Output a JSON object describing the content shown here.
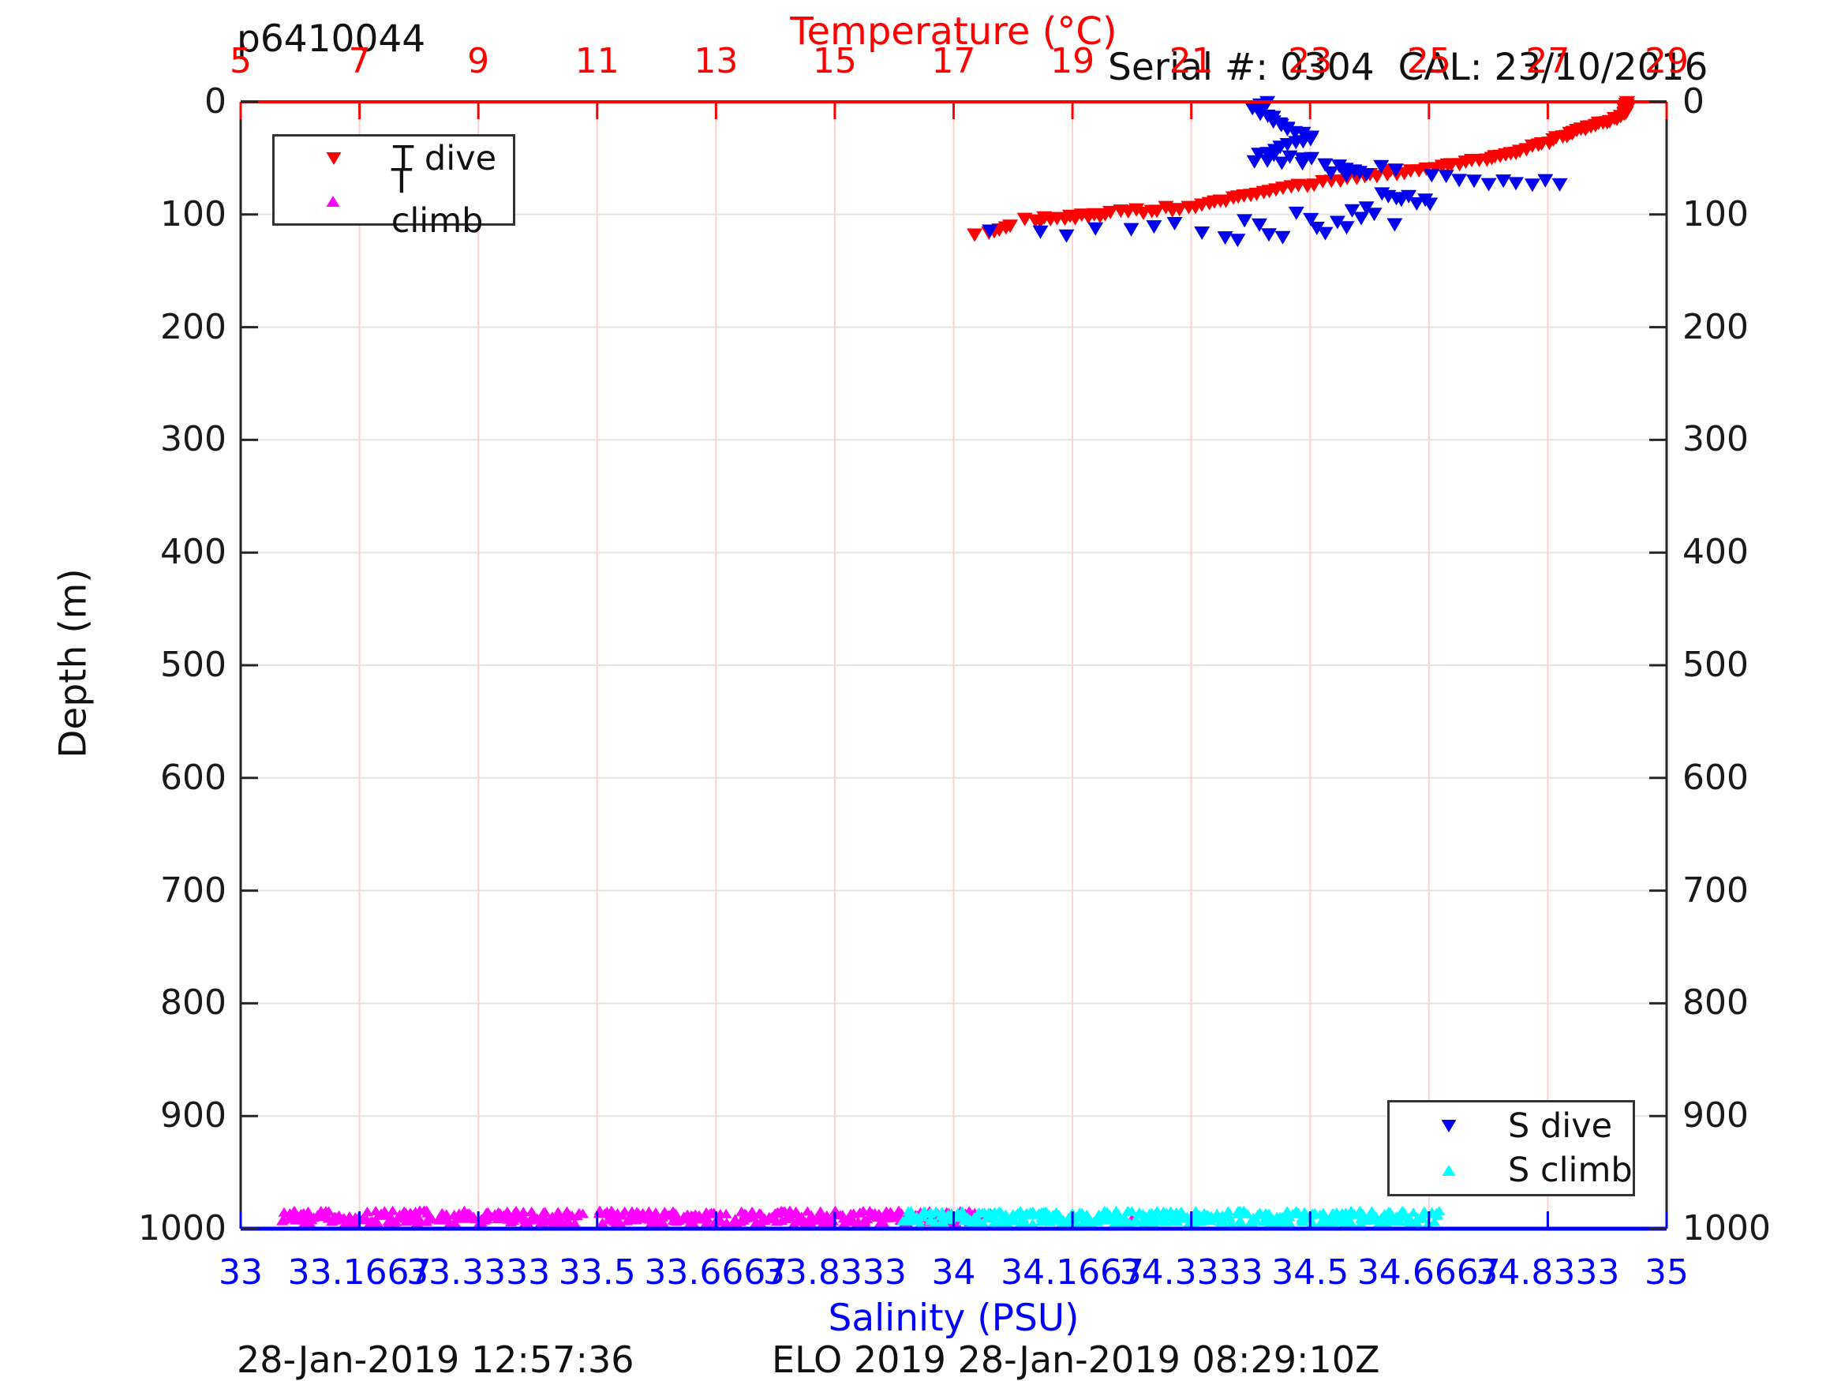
{
  "header": {
    "title": "p6410044",
    "serial_cal": "Serial #: 0304  CAL: 23/10/2016"
  },
  "footer": {
    "left_timestamp": "28-Jan-2019 12:57:36",
    "center_text": "ELO 2019 28-Jan-2019 08:29:10Z"
  },
  "axes": {
    "temperature": {
      "label": "Temperature (°C)",
      "side": "top",
      "color": "#ff0000",
      "min": 5,
      "max": 29,
      "ticks": [
        5,
        7,
        9,
        11,
        13,
        15,
        17,
        19,
        21,
        23,
        25,
        27,
        29
      ],
      "gridline_color": "#ffd2d2"
    },
    "salinity": {
      "label": "Salinity (PSU)",
      "side": "bottom",
      "color": "#0000ff",
      "min": 33,
      "max": 35,
      "tick_values": [
        33,
        33.16667,
        33.33333,
        33.5,
        33.66667,
        33.83333,
        34,
        34.16667,
        34.33333,
        34.5,
        34.66667,
        34.83333,
        35
      ],
      "tick_labels": [
        "33",
        "33.1667",
        "33.3333",
        "33.5",
        "33.6667",
        "33.8333",
        "34",
        "34.1667",
        "34.3333",
        "34.5",
        "34.6667",
        "34.8333",
        "35"
      ]
    },
    "depth": {
      "label": "Depth (m)",
      "color": "#1a1a1a",
      "min": 0,
      "max": 1000,
      "ticks": [
        0,
        100,
        200,
        300,
        400,
        500,
        600,
        700,
        800,
        900,
        1000
      ],
      "gridline_color": "#e4e4e4"
    }
  },
  "legends": {
    "t": {
      "items": [
        {
          "label": "T dive",
          "marker": "triangle-down",
          "color": "#ff0000"
        },
        {
          "label": "T climb",
          "marker": "triangle-up",
          "color": "#ff00ff"
        }
      ]
    },
    "s": {
      "items": [
        {
          "label": "S dive",
          "marker": "triangle-down",
          "color": "#0000ee"
        },
        {
          "label": "S climb",
          "marker": "triangle-up",
          "color": "#00ffff"
        }
      ]
    }
  },
  "chart_data": {
    "type": "scatter",
    "title": "p6410044",
    "x_axes": {
      "temperature": [
        5,
        29
      ],
      "salinity": [
        33,
        35
      ]
    },
    "y_axis": {
      "label": "Depth (m)",
      "range": [
        0,
        1000
      ],
      "reversed_display": true
    },
    "grid": true,
    "series": [
      {
        "name": "T dive",
        "axis": "temperature",
        "color": "#ff0000",
        "marker": "triangle-down",
        "points": [
          [
            28.33,
            1
          ],
          [
            28.3,
            2
          ],
          [
            28.35,
            3
          ],
          [
            28.31,
            4
          ],
          [
            28.34,
            5
          ],
          [
            28.3,
            6
          ],
          [
            28.32,
            7
          ],
          [
            28.34,
            8
          ],
          [
            28.3,
            9
          ],
          [
            28.32,
            10
          ],
          [
            28.3,
            11
          ],
          [
            28.28,
            12
          ],
          [
            28.24,
            14
          ],
          [
            28.18,
            15
          ],
          [
            28.12,
            16
          ],
          [
            28.06,
            17
          ],
          [
            28.0,
            18
          ],
          [
            27.94,
            19
          ],
          [
            27.88,
            20
          ],
          [
            27.8,
            21
          ],
          [
            27.74,
            22
          ],
          [
            27.68,
            23
          ],
          [
            27.62,
            24
          ],
          [
            27.56,
            25
          ],
          [
            27.5,
            26
          ],
          [
            27.45,
            27
          ],
          [
            27.4,
            28
          ],
          [
            27.35,
            29
          ],
          [
            27.3,
            31
          ],
          [
            27.23,
            32
          ],
          [
            27.16,
            33
          ],
          [
            27.1,
            34
          ],
          [
            27.02,
            36
          ],
          [
            26.92,
            37
          ],
          [
            26.82,
            39
          ],
          [
            26.73,
            40
          ],
          [
            26.64,
            42
          ],
          [
            26.55,
            43
          ],
          [
            26.46,
            45
          ],
          [
            26.38,
            46
          ],
          [
            26.3,
            47
          ],
          [
            26.21,
            48
          ],
          [
            26.12,
            49
          ],
          [
            26.04,
            50
          ],
          [
            25.95,
            51
          ],
          [
            25.85,
            52
          ],
          [
            25.73,
            53
          ],
          [
            25.61,
            54
          ],
          [
            25.5,
            55
          ],
          [
            25.4,
            56
          ],
          [
            25.3,
            57
          ],
          [
            25.2,
            58
          ],
          [
            25.1,
            59
          ],
          [
            24.97,
            60
          ],
          [
            24.85,
            61
          ],
          [
            24.7,
            62
          ],
          [
            24.58,
            63
          ],
          [
            24.47,
            64
          ],
          [
            24.36,
            62
          ],
          [
            24.28,
            65
          ],
          [
            24.15,
            66
          ],
          [
            24.0,
            64
          ],
          [
            23.9,
            67
          ],
          [
            23.78,
            68
          ],
          [
            23.64,
            69
          ],
          [
            23.5,
            70
          ],
          [
            23.37,
            71
          ],
          [
            23.22,
            72
          ],
          [
            23.08,
            73
          ],
          [
            22.95,
            74
          ],
          [
            22.82,
            75
          ],
          [
            22.68,
            76
          ],
          [
            22.55,
            77
          ],
          [
            22.43,
            78
          ],
          [
            22.32,
            80
          ],
          [
            22.2,
            81
          ],
          [
            22.1,
            82
          ],
          [
            22.0,
            83
          ],
          [
            21.9,
            84
          ],
          [
            21.8,
            85
          ],
          [
            21.7,
            86
          ],
          [
            21.6,
            88
          ],
          [
            21.5,
            89
          ],
          [
            21.4,
            90
          ],
          [
            21.3,
            91
          ],
          [
            21.18,
            92
          ],
          [
            21.06,
            93
          ],
          [
            20.94,
            94
          ],
          [
            20.82,
            95
          ],
          [
            20.68,
            96
          ],
          [
            20.55,
            94
          ],
          [
            20.44,
            97
          ],
          [
            20.32,
            98
          ],
          [
            20.2,
            99
          ],
          [
            20.05,
            96
          ],
          [
            19.92,
            97
          ],
          [
            19.8,
            98
          ],
          [
            19.66,
            99
          ],
          [
            19.55,
            100
          ],
          [
            19.45,
            101
          ],
          [
            19.35,
            100
          ],
          [
            19.25,
            102
          ],
          [
            19.15,
            101
          ],
          [
            19.05,
            103
          ],
          [
            18.95,
            102
          ],
          [
            18.85,
            104
          ],
          [
            18.75,
            103
          ],
          [
            18.65,
            105
          ],
          [
            18.55,
            104
          ],
          [
            18.45,
            106
          ],
          [
            18.35,
            105
          ],
          [
            18.2,
            104
          ],
          [
            17.97,
            111
          ],
          [
            17.9,
            113
          ],
          [
            17.78,
            114
          ],
          [
            17.68,
            115
          ],
          [
            17.58,
            116
          ],
          [
            17.37,
            118
          ]
        ]
      },
      {
        "name": "S dive",
        "axis": "salinity",
        "color": "#0000ee",
        "marker": "triangle-down",
        "points": [
          [
            34.44,
            1
          ],
          [
            34.43,
            3
          ],
          [
            34.42,
            5
          ],
          [
            34.42,
            7
          ],
          [
            34.43,
            9
          ],
          [
            34.43,
            11
          ],
          [
            34.44,
            13
          ],
          [
            34.45,
            15
          ],
          [
            34.45,
            17
          ],
          [
            34.46,
            19
          ],
          [
            34.46,
            21
          ],
          [
            34.47,
            23
          ],
          [
            34.47,
            25
          ],
          [
            34.48,
            27
          ],
          [
            34.49,
            29
          ],
          [
            34.5,
            31
          ],
          [
            34.5,
            33
          ],
          [
            34.49,
            35
          ],
          [
            34.48,
            37
          ],
          [
            34.47,
            39
          ],
          [
            34.46,
            41
          ],
          [
            34.45,
            43
          ],
          [
            34.44,
            45
          ],
          [
            34.43,
            47
          ],
          [
            34.45,
            48
          ],
          [
            34.47,
            49
          ],
          [
            34.49,
            50
          ],
          [
            34.5,
            51
          ],
          [
            34.44,
            52
          ],
          [
            34.42,
            53
          ],
          [
            34.46,
            54
          ],
          [
            34.49,
            55
          ],
          [
            34.52,
            56
          ],
          [
            34.54,
            57
          ],
          [
            34.55,
            59
          ],
          [
            34.56,
            61
          ],
          [
            34.53,
            63
          ],
          [
            34.55,
            65
          ],
          [
            34.57,
            62
          ],
          [
            34.58,
            64
          ],
          [
            34.6,
            58
          ],
          [
            34.62,
            60
          ],
          [
            34.67,
            65
          ],
          [
            34.69,
            67
          ],
          [
            34.71,
            69
          ],
          [
            34.73,
            71
          ],
          [
            34.75,
            73
          ],
          [
            34.77,
            70
          ],
          [
            34.79,
            72
          ],
          [
            34.81,
            74
          ],
          [
            34.83,
            71
          ],
          [
            34.85,
            73
          ],
          [
            34.6,
            82
          ],
          [
            34.61,
            84
          ],
          [
            34.62,
            86
          ],
          [
            34.63,
            88
          ],
          [
            34.64,
            85
          ],
          [
            34.65,
            90
          ],
          [
            34.66,
            87
          ],
          [
            34.67,
            92
          ],
          [
            34.58,
            94
          ],
          [
            34.56,
            96
          ],
          [
            34.05,
            114
          ],
          [
            34.12,
            116
          ],
          [
            34.16,
            119
          ],
          [
            34.2,
            113
          ],
          [
            34.25,
            114
          ],
          [
            34.28,
            111
          ],
          [
            34.31,
            108
          ],
          [
            34.35,
            116
          ],
          [
            34.38,
            120
          ],
          [
            34.4,
            124
          ],
          [
            34.41,
            106
          ],
          [
            34.43,
            110
          ],
          [
            34.44,
            118
          ],
          [
            34.46,
            121
          ],
          [
            34.48,
            100
          ],
          [
            34.5,
            104
          ],
          [
            34.51,
            113
          ],
          [
            34.52,
            117
          ],
          [
            34.54,
            108
          ],
          [
            34.55,
            112
          ],
          [
            34.57,
            103
          ],
          [
            34.59,
            99
          ],
          [
            34.62,
            110
          ]
        ]
      },
      {
        "name": "T climb",
        "axis": "temperature",
        "color": "#ff00ff",
        "marker": "triangle-up",
        "band": {
          "from": 5.7,
          "to": 17.42,
          "depth_min": 983.5,
          "depth_max": 995.5,
          "count": 440,
          "gaps": [
            [
              8.25,
              8.34
            ],
            [
              10.8,
              10.97
            ],
            [
              13.2,
              13.3
            ]
          ]
        },
        "extra_points": [
          [
            17.5,
            989
          ],
          [
            17.62,
            986
          ],
          [
            20.0,
            991
          ]
        ]
      },
      {
        "name": "S climb",
        "axis": "salinity",
        "color": "#00ffff",
        "marker": "triangle-up",
        "band": {
          "from": 33.93,
          "to": 34.68,
          "depth_min": 983.5,
          "depth_max": 995.5,
          "count": 350,
          "gaps": []
        }
      }
    ]
  }
}
